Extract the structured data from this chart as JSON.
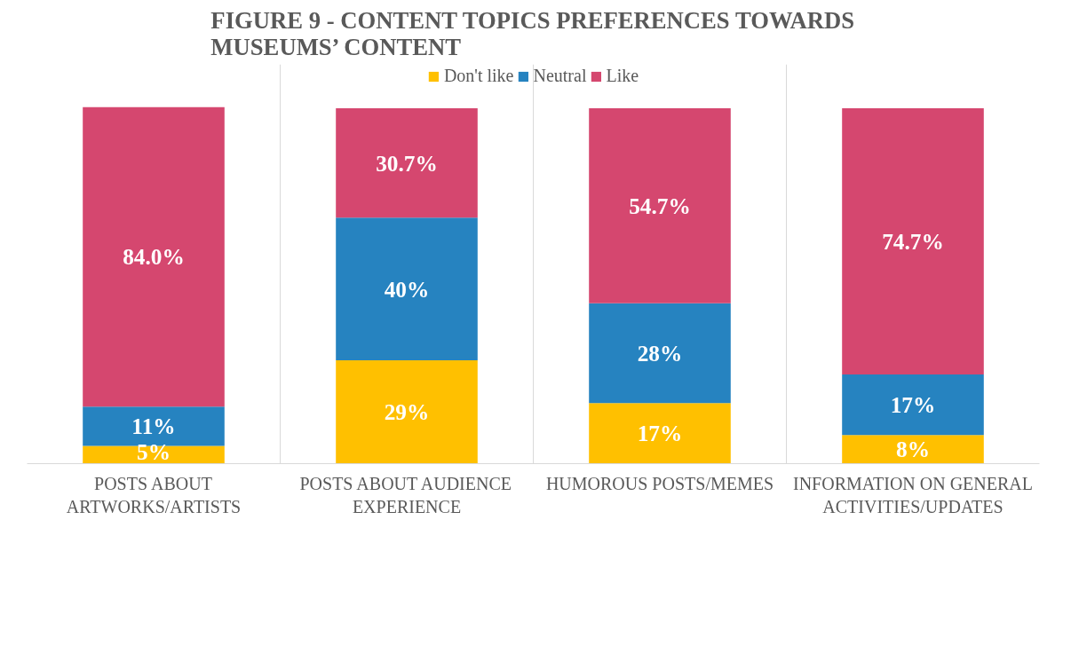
{
  "chart_data": {
    "type": "bar",
    "stacked": true,
    "title": "FIGURE 9 - CONTENT TOPICS PREFERENCES TOWARDS MUSEUMS’ CONTENT",
    "categories": [
      "POSTS ABOUT ARTWORKS/ARTISTS",
      "POSTS ABOUT AUDIENCE EXPERIENCE",
      "HUMOROUS POSTS/MEMES",
      "INFORMATION ON GENERAL ACTIVITIES/UPDATES"
    ],
    "series": [
      {
        "name": "Don't like",
        "color": "#ffc000",
        "values": [
          5,
          29,
          17,
          8
        ],
        "value_labels": [
          "5%",
          "29%",
          "17%",
          "8%"
        ]
      },
      {
        "name": "Neutral",
        "color": "#2683c0",
        "values": [
          11,
          40,
          28,
          17
        ],
        "value_labels": [
          "11%",
          "40%",
          "28%",
          "17%"
        ]
      },
      {
        "name": "Like",
        "color": "#d5476f",
        "values": [
          84.0,
          30.7,
          54.7,
          74.7
        ],
        "value_labels": [
          "84.0%",
          "30.7%",
          "54.7%",
          "74.7%"
        ]
      }
    ],
    "legend": "top",
    "grid": "x"
  }
}
